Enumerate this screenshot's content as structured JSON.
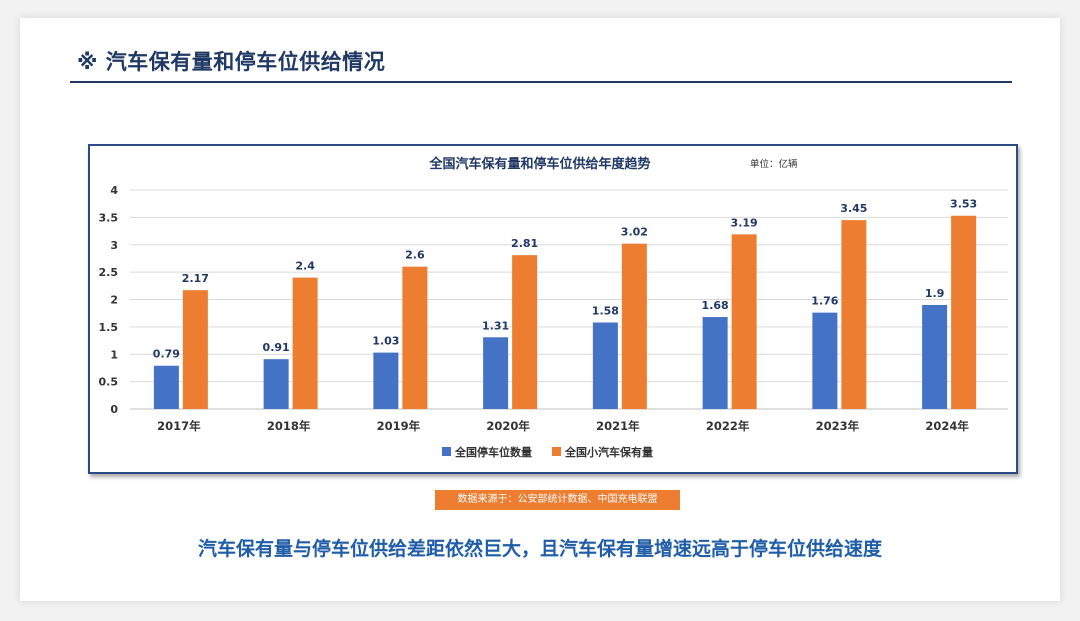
{
  "slide": {
    "heading": "※ 汽车保有量和停车位供给情况",
    "source": "数据来源于：公安部统计数据、中国充电联盟",
    "conclusion": "汽车保有量与停车位供给差距依然巨大，且汽车保有量增速远高于停车位供给速度"
  },
  "chart_data": {
    "type": "bar",
    "title": "全国汽车保有量和停车位供给年度趋势",
    "unit": "单位：亿辆",
    "categories": [
      "2017年",
      "2018年",
      "2019年",
      "2020年",
      "2021年",
      "2022年",
      "2023年",
      "2024年"
    ],
    "series": [
      {
        "name": "全国停车位数量",
        "color": "#4472c4",
        "values": [
          0.79,
          0.91,
          1.03,
          1.31,
          1.58,
          1.68,
          1.76,
          1.9
        ],
        "labels": [
          "0.79",
          "0.91",
          "1.03",
          "1.31",
          "1.58",
          "1.68",
          "1.76",
          "1.9"
        ]
      },
      {
        "name": "全国小汽车保有量",
        "color": "#ed7d31",
        "values": [
          2.17,
          2.4,
          2.6,
          2.81,
          3.02,
          3.19,
          3.45,
          3.53
        ],
        "labels": [
          "2.17",
          "2.4",
          "2.6",
          "2.81",
          "3.02",
          "3.19",
          "3.45",
          "3.53"
        ]
      }
    ],
    "yticks": [
      "0",
      "0.5",
      "1",
      "1.5",
      "2",
      "2.5",
      "3",
      "3.5",
      "4"
    ],
    "ylim": [
      0,
      4
    ],
    "grid": true,
    "legend": "bottom"
  }
}
